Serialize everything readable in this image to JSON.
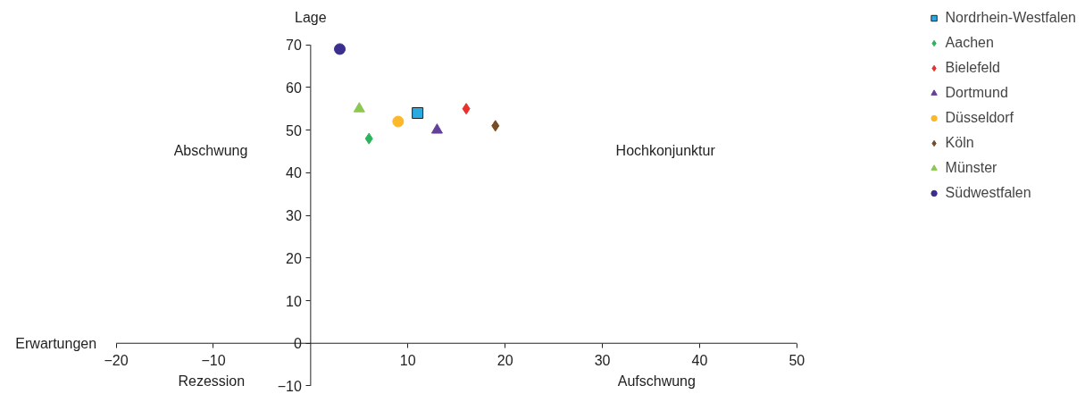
{
  "chart_data": {
    "type": "scatter",
    "xlabel": "Erwartungen",
    "ylabel": "Lage",
    "annotations": [
      "Abschwung",
      "Hochkonjunktur",
      "Rezession",
      "Aufschwung"
    ],
    "xlim": [
      -20,
      50
    ],
    "ylim": [
      -10,
      70
    ],
    "xticks": [
      -20,
      -10,
      10,
      20,
      30,
      40,
      50
    ],
    "yticks": [
      -10,
      0,
      10,
      20,
      30,
      40,
      50,
      60,
      70
    ],
    "legend": "right",
    "series": [
      {
        "name": "Nordrhein-Westfalen",
        "color": "#29abe2",
        "marker": "square",
        "x": [
          11
        ],
        "values": [
          54
        ]
      },
      {
        "name": "Aachen",
        "color": "#2db35b",
        "marker": "diamond",
        "x": [
          6
        ],
        "values": [
          48
        ]
      },
      {
        "name": "Bielefeld",
        "color": "#e8312a",
        "marker": "diamond",
        "x": [
          16
        ],
        "values": [
          55
        ]
      },
      {
        "name": "Dortmund",
        "color": "#63409a",
        "marker": "triangle",
        "x": [
          13
        ],
        "values": [
          50
        ]
      },
      {
        "name": "Düsseldorf",
        "color": "#fbb829",
        "marker": "circle",
        "x": [
          9
        ],
        "values": [
          52
        ]
      },
      {
        "name": "Köln",
        "color": "#7a4a22",
        "marker": "diamond",
        "x": [
          19
        ],
        "values": [
          51
        ]
      },
      {
        "name": "Münster",
        "color": "#8cc751",
        "marker": "triangle",
        "x": [
          5
        ],
        "values": [
          55
        ]
      },
      {
        "name": "Südwestfalen",
        "color": "#3a2f8f",
        "marker": "circle",
        "x": [
          3
        ],
        "values": [
          69
        ]
      }
    ]
  }
}
